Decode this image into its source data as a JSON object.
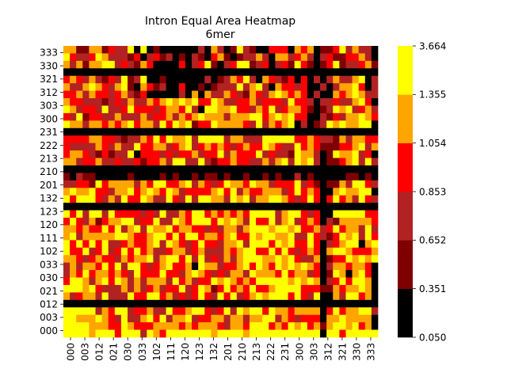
{
  "chart_data": {
    "type": "heatmap",
    "title": "Intron Equal Area Heatmap",
    "subtitle": "6mer",
    "xlabel": "",
    "ylabel": "",
    "x_tick_labels": [
      "000",
      "003",
      "012",
      "021",
      "030",
      "033",
      "102",
      "111",
      "120",
      "123",
      "132",
      "201",
      "210",
      "213",
      "222",
      "231",
      "300",
      "303",
      "312",
      "321",
      "330",
      "333"
    ],
    "y_tick_labels": [
      "333",
      "330",
      "321",
      "312",
      "303",
      "300",
      "231",
      "222",
      "213",
      "210",
      "201",
      "132",
      "123",
      "120",
      "111",
      "102",
      "033",
      "030",
      "021",
      "012",
      "003",
      "000"
    ],
    "colorbar": {
      "tick_labels": [
        "3.664",
        "1.355",
        "1.054",
        "0.853",
        "0.652",
        "0.351",
        "0.050"
      ],
      "bins": [
        {
          "from": 0.05,
          "to": 0.351,
          "color": "#000000"
        },
        {
          "from": 0.351,
          "to": 0.652,
          "color": "#7f0000"
        },
        {
          "from": 0.652,
          "to": 0.853,
          "color": "#b22222"
        },
        {
          "from": 0.853,
          "to": 1.054,
          "color": "#ff0000"
        },
        {
          "from": 1.054,
          "to": 1.355,
          "color": "#ffa500"
        },
        {
          "from": 1.355,
          "to": 3.664,
          "color": "#ffff00"
        }
      ]
    },
    "grid": false,
    "cell_value_levels_legend": "values are bin levels 0-5 (0 = 0.050–0.351 … 5 = 1.355–3.664)",
    "matrix_rows": [
      "4411441322505010000002042015210033304340113524220",
      "5322354222130231201021034101224204423420231133420",
      "4241445523214300003023510235512302315310135122341",
      "0000000000000000000000000000000000000000000000000",
      "3432421325125001000000201243520432130302024224502",
      "4224543245104312003001012225245204332300202445302",
      "3342433234213000002040422432143245434302004345422",
      "4332221232422434545453354223342333253320223224530",
      "5423325223533323443520554453324352344310125452342",
      "3251332242224233424345444244455345453300213244543",
      "5442443434534425354513354444325243450201254544550",
      "0000000000000000000000000000000000000000000000000",
      "3333443321224353544525555244222555553343221424433",
      "3222243242253344234523434323433543225343111334524",
      "3443213122503332323342335243335232215442015445230",
      "4423342232231334255225213343322424525452011345252",
      "0000000000000000000000000000000000000000000000000",
      "1021100000100001010010110100100101002010000011010",
      "2233153444424355334524323544354423335231011425532",
      "4544533244534543542333345352433444235343004544550",
      "5355532425335422532525544254524455432353035342532",
      "0000000000000000000000000000000000000000000000000",
      "5352552533332325224355343434355552455323005555533",
      "3532413445523352254355535454253352452343021444443",
      "4434335352452544534433232442455545545334235344252",
      "4524444455433455353553443453354554452253213545253",
      "5353535223433452543235332445255535453353023455045",
      "5335235235353422344234222434553353532343045543334",
      "4432343324344524553525232424555445453224013354545",
      "2424435352553234533405442334535435454543024434430",
      "2435344343253335332454323244254443534423015404530",
      "3554245354242444253423354543435555545454023535540",
      "5554532224242342335235413534353345555333114344540",
      "4234425222533553423235325352345455535325004255340",
      "0000000000000000000000000000000000000000000000000",
      "5555524355233422533455323525455354434444035344552",
      "5544454325224535244523344244244552432333044544440",
      "5555444335433344443434443244355534354534145545340",
      "5555455535552543555555545555455555555555055355555"
    ]
  }
}
